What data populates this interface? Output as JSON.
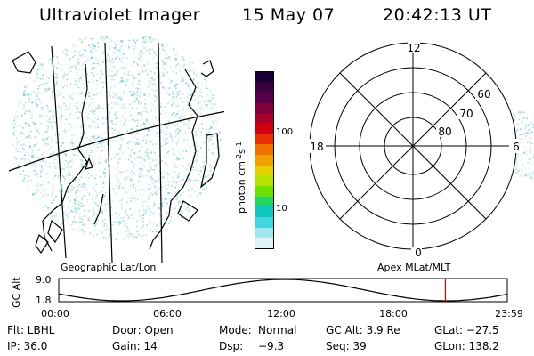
{
  "header": {
    "instrument": "Ultraviolet Imager",
    "date": "15 May 07",
    "time": "20:42:13 UT"
  },
  "image_panel": {
    "caption": "Geographic Lat/Lon"
  },
  "colorbar": {
    "unit_label": "photon cm",
    "unit_sup1": "-2",
    "unit_s": "s",
    "unit_sup2": "-1",
    "tick_100": "100",
    "tick_10": "10",
    "colors_top_to_bottom": [
      "#1a0033",
      "#3a0040",
      "#5a0048",
      "#80003c",
      "#a80028",
      "#d00010",
      "#e83000",
      "#f07000",
      "#f0a000",
      "#e8d000",
      "#b8e000",
      "#70e000",
      "#20d860",
      "#10c8c0",
      "#40d8e0",
      "#a0e8f0",
      "#e0f4f8"
    ]
  },
  "polar_panel": {
    "caption": "Apex  MLat/MLT",
    "label_12": "12",
    "label_6": "6",
    "label_18": "18",
    "label_0": "0",
    "label_60": "60",
    "label_70": "70",
    "label_80": "80"
  },
  "altitude_plot": {
    "ylabel": "GC Alt",
    "ymax": "9.0",
    "ymin": "1.8",
    "xticks": [
      "00:00",
      "06:00",
      "12:00",
      "18:00",
      "23:59"
    ],
    "current_time_fraction": 0.862,
    "marker_color": "#cc0000"
  },
  "footer": {
    "row1": {
      "flt": "Flt: LBHL",
      "door": "Door: Open",
      "mode_label": "Mode:",
      "mode_value": "Normal",
      "gcalt": "GC Alt: 3.9 Re",
      "glat": "GLat: −27.5"
    },
    "row2": {
      "ip": "IP: 36.0",
      "gain": "Gain: 14",
      "dsp_label": "Dsp:",
      "dsp_value": "−9.3",
      "seq": "Seq: 39",
      "glon": "GLon: 138.2"
    }
  }
}
